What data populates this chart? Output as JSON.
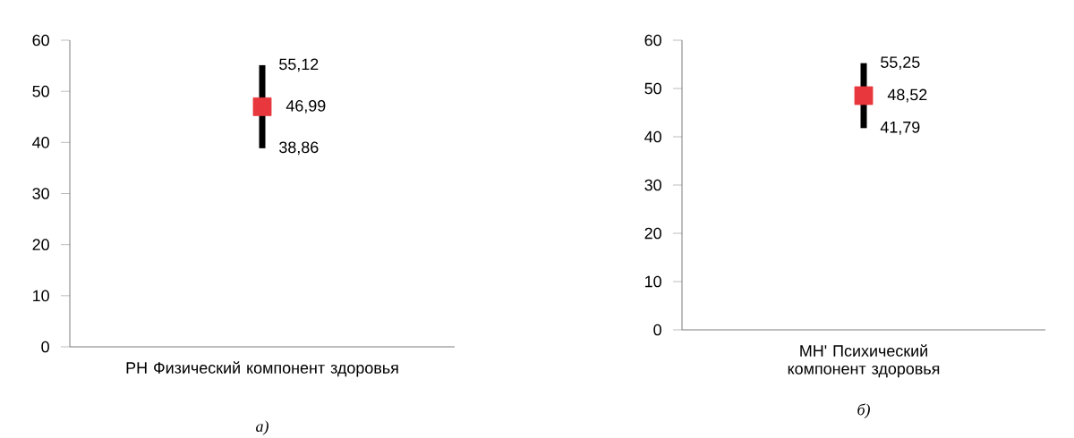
{
  "chart_data": [
    {
      "type": "scatter",
      "categories": [
        "PH Физический компонент здоровья"
      ],
      "values": [
        46.99
      ],
      "errors": [
        [
          38.86,
          55.12
        ]
      ],
      "value_labels": [
        "46,99"
      ],
      "color": "#e8383d",
      "marker": "square",
      "ylim": [
        0,
        60
      ],
      "yticks": [
        0,
        10,
        20,
        30,
        40,
        50,
        60
      ],
      "annotations": [
        {
          "text": "55,12",
          "x": "PH Физический компонент здоровья",
          "y": 55.12
        },
        {
          "text": "38,86",
          "x": "PH Физический компонент здоровья",
          "y": 38.86
        },
        "а)"
      ]
    },
    {
      "type": "scatter",
      "categories": [
        "MH' Психический компонент здоровья"
      ],
      "values": [
        48.52
      ],
      "errors": [
        [
          41.79,
          55.25
        ]
      ],
      "value_labels": [
        "48,52"
      ],
      "color": "#e8383d",
      "marker": "square",
      "ylim": [
        0,
        60
      ],
      "yticks": [
        0,
        10,
        20,
        30,
        40,
        50,
        60
      ],
      "annotations": [
        {
          "text": "55,25",
          "x": "MH' Психический компонент здоровья",
          "y": 55.25
        },
        {
          "text": "41,79",
          "x": "MH' Психический компонент здоровья",
          "y": 41.79
        },
        "б)"
      ]
    }
  ]
}
